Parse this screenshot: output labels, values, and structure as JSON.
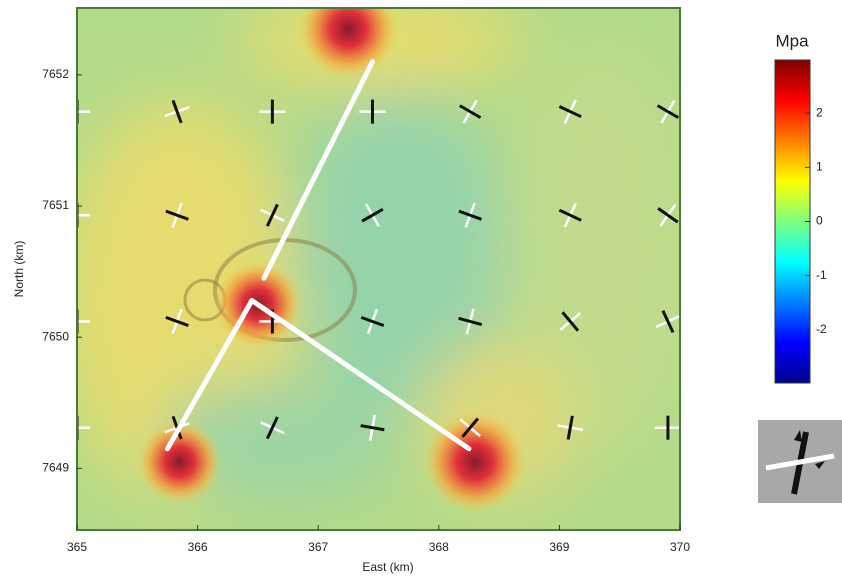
{
  "chart_data": {
    "type": "heatmap",
    "x_label": "East (km)",
    "y_label": "North (km)",
    "xlim": [
      365,
      370
    ],
    "ylim": [
      7648.53,
      7652.51
    ],
    "xticks": [
      365,
      366,
      367,
      368,
      369,
      370
    ],
    "yticks": [
      7649,
      7650,
      7651,
      7652
    ],
    "colorbar": {
      "title": "Mpa",
      "lim": [
        -2.98,
        2.98
      ],
      "ticks": [
        -2,
        -1,
        0,
        1,
        2
      ]
    },
    "hotspots": {
      "x": [
        367.25,
        366.5,
        365.85,
        368.3
      ],
      "y": [
        7652.35,
        7650.25,
        7649.05,
        7649.05
      ],
      "values": [
        2.8,
        2.2,
        2.0,
        2.9
      ]
    },
    "lines": [
      {
        "x": [
          366.55,
          367.45
        ],
        "y": [
          7650.45,
          7652.1
        ]
      },
      {
        "x": [
          366.45,
          365.75
        ],
        "y": [
          7650.28,
          7649.15
        ]
      },
      {
        "x": [
          366.45,
          368.25
        ],
        "y": [
          7650.28,
          7649.15
        ]
      }
    ],
    "crosses": {
      "x": [
        365.0,
        365.83,
        366.62,
        367.45,
        368.26,
        369.09,
        369.9
      ],
      "y": [
        7651.72,
        7650.93,
        7650.12,
        7649.31
      ],
      "angles": [
        [
          0,
          -20,
          0,
          0,
          -60,
          -65,
          -60
        ],
        [
          0,
          -70,
          25,
          60,
          -70,
          -65,
          -55
        ],
        [
          0,
          -70,
          0,
          -70,
          -75,
          -40,
          -25
        ],
        [
          0,
          -20,
          25,
          -80,
          40,
          10,
          0
        ]
      ]
    }
  }
}
